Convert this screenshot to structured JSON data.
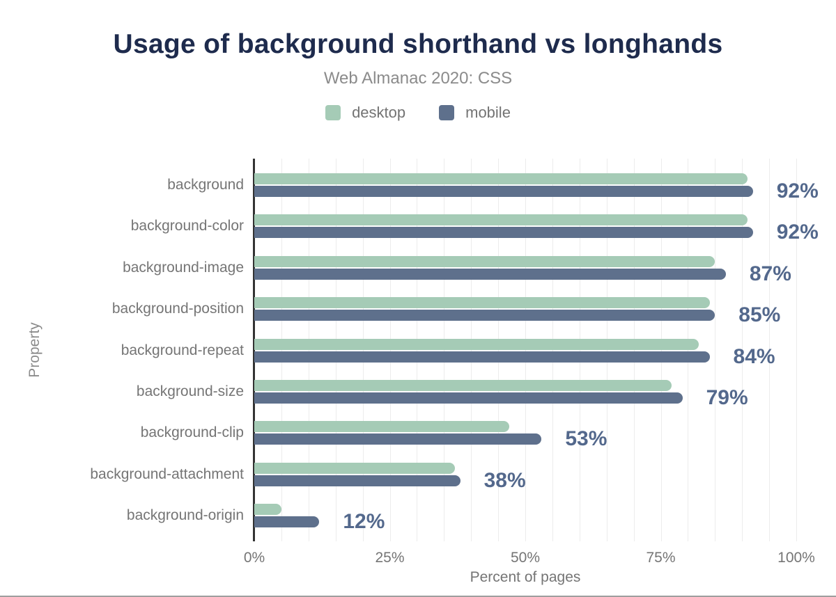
{
  "title": "Usage of background shorthand vs longhands",
  "subtitle": "Web Almanac 2020: CSS",
  "legend": [
    {
      "label": "desktop",
      "color": "#a5cbb6"
    },
    {
      "label": "mobile",
      "color": "#5e708c"
    }
  ],
  "chart_data": {
    "type": "bar",
    "orientation": "horizontal",
    "title": "Usage of background shorthand vs longhands",
    "subtitle": "Web Almanac 2020: CSS",
    "xlabel": "Percent of pages",
    "ylabel": "Property",
    "xlim": [
      0,
      100
    ],
    "x_ticks": [
      "0%",
      "25%",
      "50%",
      "75%",
      "100%"
    ],
    "grid": "vertical, minor gridlines every 5%",
    "legend_position": "top",
    "categories": [
      "background",
      "background-color",
      "background-image",
      "background-position",
      "background-repeat",
      "background-size",
      "background-clip",
      "background-attachment",
      "background-origin"
    ],
    "series": [
      {
        "name": "desktop",
        "color": "#a5cbb6",
        "values": [
          91,
          91,
          85,
          84,
          82,
          77,
          47,
          37,
          5
        ]
      },
      {
        "name": "mobile",
        "color": "#5e708c",
        "values": [
          92,
          92,
          87,
          85,
          84,
          79,
          53,
          38,
          12
        ]
      }
    ],
    "value_labels": [
      "92%",
      "92%",
      "87%",
      "85%",
      "84%",
      "79%",
      "53%",
      "38%",
      "12%"
    ],
    "value_label_series": "mobile",
    "colors": {
      "title": "#1e2b4d",
      "subtitle": "#8b8b8b",
      "axis_line": "#333333",
      "gridline": "#ececec",
      "tick_label": "#757575",
      "value_label": "#53688c"
    }
  }
}
